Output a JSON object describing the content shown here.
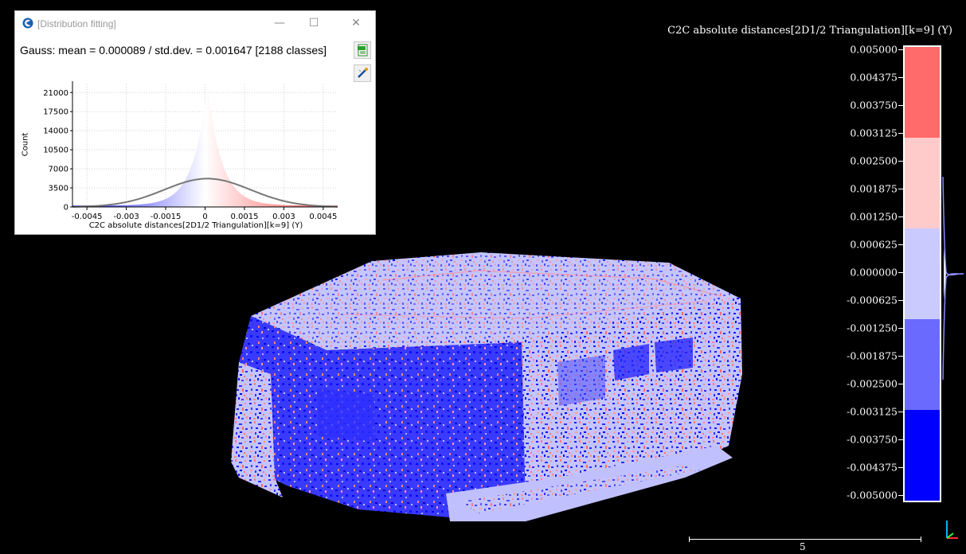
{
  "window": {
    "title": "[Distribution fitting]",
    "gauss_text": "Gauss: mean = 0.000089 / std.dev. = 0.001647 [2188 classes]",
    "buttons": {
      "minimize": "—",
      "maximize": "☐",
      "close": "✕"
    },
    "icons": [
      "cloudcompare-logo-icon",
      "export-csv-icon",
      "export-image-icon"
    ]
  },
  "chart_data": {
    "type": "bar",
    "xlabel": "C2C absolute distances[2D1/2 Triangulation][k=9] (Y)",
    "ylabel": "Count",
    "x_ticks": [
      "-0.0045",
      "-0.003",
      "-0.0015",
      "0",
      "0.0015",
      "0.003",
      "0.0045"
    ],
    "x_tick_values": [
      -0.0045,
      -0.003,
      -0.0015,
      0,
      0.0015,
      0.003,
      0.0045
    ],
    "y_ticks": [
      "0",
      "3500",
      "7000",
      "10500",
      "14000",
      "17500",
      "21000"
    ],
    "y_tick_values": [
      0,
      3500,
      7000,
      10500,
      14000,
      17500,
      21000
    ],
    "xlim": [
      -0.00505,
      0.00505
    ],
    "ylim": [
      0,
      22500
    ],
    "grid": true,
    "gauss_fit": {
      "mean": 8.9e-05,
      "std": 0.001647,
      "peak": 5200
    },
    "histogram_peak": 22000,
    "bins": 2188
  },
  "scale": {
    "title": "C2C absolute distances[2D1/2 Triangulation][k=9] (Y)",
    "labels": [
      "0.005000",
      "0.004375",
      "0.003750",
      "0.003125",
      "0.002500",
      "0.001875",
      "0.001250",
      "0.000625",
      "0.000000",
      "-0.000625",
      "-0.001250",
      "-0.001875",
      "-0.002500",
      "-0.003125",
      "-0.003750",
      "-0.004375",
      "-0.005000"
    ],
    "bands": [
      {
        "color": "#ff6a6a"
      },
      {
        "color": "#ffcaca"
      },
      {
        "color": "#cacaff"
      },
      {
        "color": "#6a6aff"
      },
      {
        "color": "#0000ff"
      }
    ]
  },
  "scalebar": {
    "label": "5"
  },
  "colors": {
    "background": "#000000",
    "red": "#ff3030",
    "light_red": "#ffc8c8",
    "light_blue": "#c8c8ff",
    "blue": "#0000ff",
    "gauss_curve": "#777777"
  }
}
